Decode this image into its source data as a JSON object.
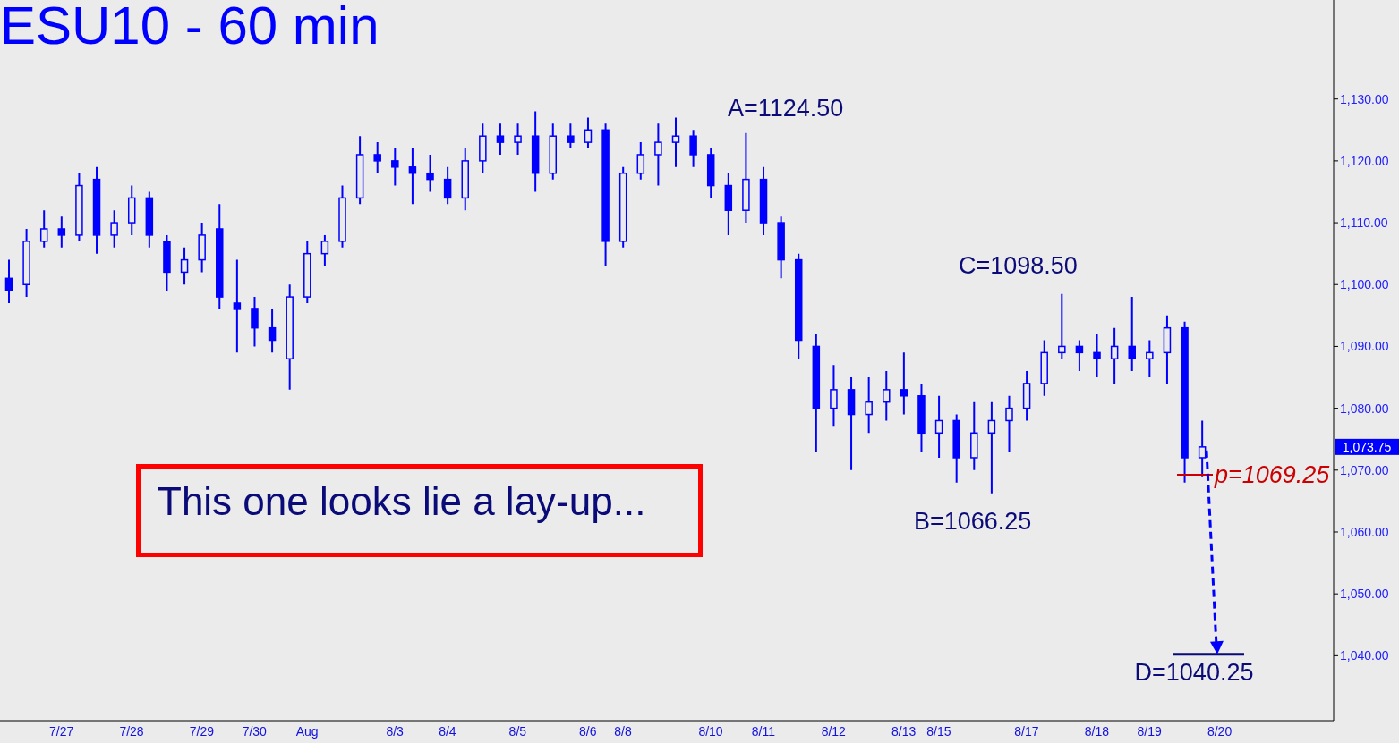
{
  "chart_data": {
    "type": "candlestick",
    "title": "ESU10 - 60 min",
    "color": "#0000ff",
    "categories": [
      null,
      null,
      null,
      "7/27",
      null,
      null,
      null,
      "7/28",
      null,
      null,
      null,
      "7/29",
      null,
      null,
      "7/30",
      null,
      null,
      "Aug",
      null,
      null,
      null,
      null,
      "8/3",
      null,
      null,
      "8/4",
      null,
      null,
      null,
      "8/5",
      null,
      null,
      null,
      "8/6",
      null,
      "8/8",
      null,
      null,
      null,
      null,
      "8/10",
      null,
      null,
      "8/11",
      null,
      null,
      null,
      "8/12",
      null,
      null,
      null,
      "8/13",
      null,
      "8/15",
      null,
      null,
      null,
      null,
      "8/17",
      null,
      null,
      null,
      "8/18",
      null,
      null,
      "8/19",
      null,
      null,
      null,
      "8/20",
      null,
      null,
      null,
      null,
      null,
      null
    ],
    "ohlc": [
      [
        1101,
        1104,
        1097,
        1099
      ],
      [
        1100,
        1109,
        1098,
        1107
      ],
      [
        1107,
        1112,
        1106,
        1109
      ],
      [
        1109,
        1111,
        1106,
        1108
      ],
      [
        1108,
        1118,
        1107,
        1116
      ],
      [
        1117,
        1119,
        1105,
        1108
      ],
      [
        1108,
        1112,
        1106,
        1110
      ],
      [
        1110,
        1116,
        1108,
        1114
      ],
      [
        1114,
        1115,
        1106,
        1108
      ],
      [
        1107,
        1108,
        1099,
        1102
      ],
      [
        1102,
        1106,
        1100,
        1104
      ],
      [
        1104,
        1110,
        1102,
        1108
      ],
      [
        1109,
        1113,
        1096,
        1098
      ],
      [
        1097,
        1104,
        1089,
        1096
      ],
      [
        1096,
        1098,
        1090,
        1093
      ],
      [
        1093,
        1096,
        1089,
        1091
      ],
      [
        1088,
        1100,
        1083,
        1098
      ],
      [
        1098,
        1107,
        1097,
        1105
      ],
      [
        1105,
        1108,
        1103,
        1107
      ],
      [
        1107,
        1116,
        1106,
        1114
      ],
      [
        1114,
        1124,
        1113,
        1121
      ],
      [
        1121,
        1123,
        1118,
        1120
      ],
      [
        1120,
        1122,
        1116,
        1119
      ],
      [
        1119,
        1122,
        1113,
        1118
      ],
      [
        1118,
        1121,
        1115,
        1117
      ],
      [
        1117,
        1119,
        1113,
        1114
      ],
      [
        1114,
        1122,
        1112,
        1120
      ],
      [
        1120,
        1126,
        1118,
        1124
      ],
      [
        1124,
        1126,
        1121,
        1123
      ],
      [
        1123,
        1126,
        1121,
        1124
      ],
      [
        1124,
        1128,
        1115,
        1118
      ],
      [
        1118,
        1126,
        1117,
        1124
      ],
      [
        1124,
        1126,
        1122,
        1123
      ],
      [
        1123,
        1127,
        1122,
        1125
      ],
      [
        1125,
        1126,
        1103,
        1107
      ],
      [
        1107,
        1119,
        1106,
        1118
      ],
      [
        1118,
        1123,
        1117,
        1121
      ],
      [
        1121,
        1126,
        1116,
        1123
      ],
      [
        1123,
        1127,
        1119,
        1124
      ],
      [
        1124,
        1125,
        1119,
        1121
      ],
      [
        1121,
        1122,
        1114,
        1116
      ],
      [
        1116,
        1118,
        1108,
        1112
      ],
      [
        1112,
        1124.5,
        1110,
        1117
      ],
      [
        1117,
        1119,
        1108,
        1110
      ],
      [
        1110,
        1111,
        1101,
        1104
      ],
      [
        1104,
        1105,
        1088,
        1091
      ],
      [
        1090,
        1092,
        1073,
        1080
      ],
      [
        1080,
        1087,
        1077,
        1083
      ],
      [
        1083,
        1085,
        1070,
        1079
      ],
      [
        1079,
        1085,
        1076,
        1081
      ],
      [
        1081,
        1086,
        1078,
        1083
      ],
      [
        1083,
        1089,
        1079,
        1082
      ],
      [
        1082,
        1084,
        1073,
        1076
      ],
      [
        1076,
        1082,
        1072,
        1078
      ],
      [
        1078,
        1079,
        1068,
        1072
      ],
      [
        1072,
        1081,
        1070,
        1076
      ],
      [
        1076,
        1081,
        1066.25,
        1078
      ],
      [
        1078,
        1082,
        1073,
        1080
      ],
      [
        1080,
        1086,
        1078,
        1084
      ],
      [
        1084,
        1091,
        1082,
        1089
      ],
      [
        1089,
        1098.5,
        1088,
        1090
      ],
      [
        1090,
        1091,
        1086,
        1089
      ],
      [
        1089,
        1092,
        1085,
        1088
      ],
      [
        1088,
        1093,
        1084,
        1090
      ],
      [
        1090,
        1098,
        1086,
        1088
      ],
      [
        1088,
        1091,
        1085,
        1089
      ],
      [
        1089,
        1095,
        1084,
        1093
      ],
      [
        1093,
        1094,
        1068,
        1072
      ],
      [
        1072,
        1078,
        1069,
        1073.75
      ],
      null,
      null,
      null,
      null,
      null,
      null,
      null
    ],
    "ylim": [
      1029.5,
      1146
    ],
    "yticks": [
      {
        "value": 1040,
        "label": "1,040.00"
      },
      {
        "value": 1050,
        "label": "1,050.00"
      },
      {
        "value": 1060,
        "label": "1,060.00"
      },
      {
        "value": 1070,
        "label": "1,070.00"
      },
      {
        "value": 1080,
        "label": "1,080.00"
      },
      {
        "value": 1090,
        "label": "1,090.00"
      },
      {
        "value": 1100,
        "label": "1,100.00"
      },
      {
        "value": 1110,
        "label": "1,110.00"
      },
      {
        "value": 1120,
        "label": "1,120.00"
      },
      {
        "value": 1130,
        "label": "1,130.00"
      }
    ],
    "ref_lines": [
      {
        "axis": "y",
        "value": 1069.25,
        "label": "p=1069.25",
        "color": "#cc0000"
      },
      {
        "axis": "y",
        "value": 1040.25,
        "label": "D=1040.25",
        "color": "#0a0a78"
      }
    ],
    "annotations": [
      "A=1124.50",
      "C=1098.50",
      "B=1066.25",
      "1,073.75",
      "This one looks lie a lay-up..."
    ]
  }
}
